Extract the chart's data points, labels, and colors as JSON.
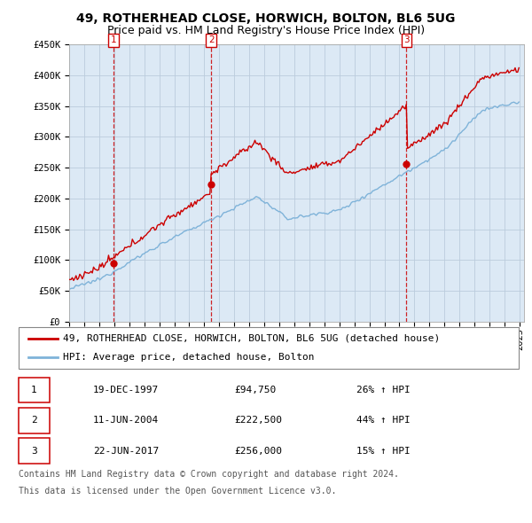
{
  "title": "49, ROTHERHEAD CLOSE, HORWICH, BOLTON, BL6 5UG",
  "subtitle": "Price paid vs. HM Land Registry's House Price Index (HPI)",
  "ylim": [
    0,
    450000
  ],
  "yticks": [
    0,
    50000,
    100000,
    150000,
    200000,
    250000,
    300000,
    350000,
    400000,
    450000
  ],
  "ytick_labels": [
    "£0",
    "£50K",
    "£100K",
    "£150K",
    "£200K",
    "£250K",
    "£300K",
    "£350K",
    "£400K",
    "£450K"
  ],
  "house_color": "#cc0000",
  "hpi_color": "#7fb3d9",
  "plot_bg_color": "#dce9f5",
  "sale_prices": [
    94750,
    222500,
    256000
  ],
  "sale_labels": [
    "1",
    "2",
    "3"
  ],
  "sale_pct": [
    "26% ↑ HPI",
    "44% ↑ HPI",
    "15% ↑ HPI"
  ],
  "sale_date_strs": [
    "19-DEC-1997",
    "11-JUN-2004",
    "22-JUN-2017"
  ],
  "sale_years": [
    1997.958,
    2004.458,
    2017.472
  ],
  "legend_house": "49, ROTHERHEAD CLOSE, HORWICH, BOLTON, BL6 5UG (detached house)",
  "legend_hpi": "HPI: Average price, detached house, Bolton",
  "footer1": "Contains HM Land Registry data © Crown copyright and database right 2024.",
  "footer2": "This data is licensed under the Open Government Licence v3.0.",
  "background_color": "#ffffff",
  "grid_color": "#bbccdd",
  "title_fontsize": 10,
  "subtitle_fontsize": 9,
  "axis_fontsize": 7.5,
  "legend_fontsize": 8,
  "table_fontsize": 8,
  "footer_fontsize": 7
}
